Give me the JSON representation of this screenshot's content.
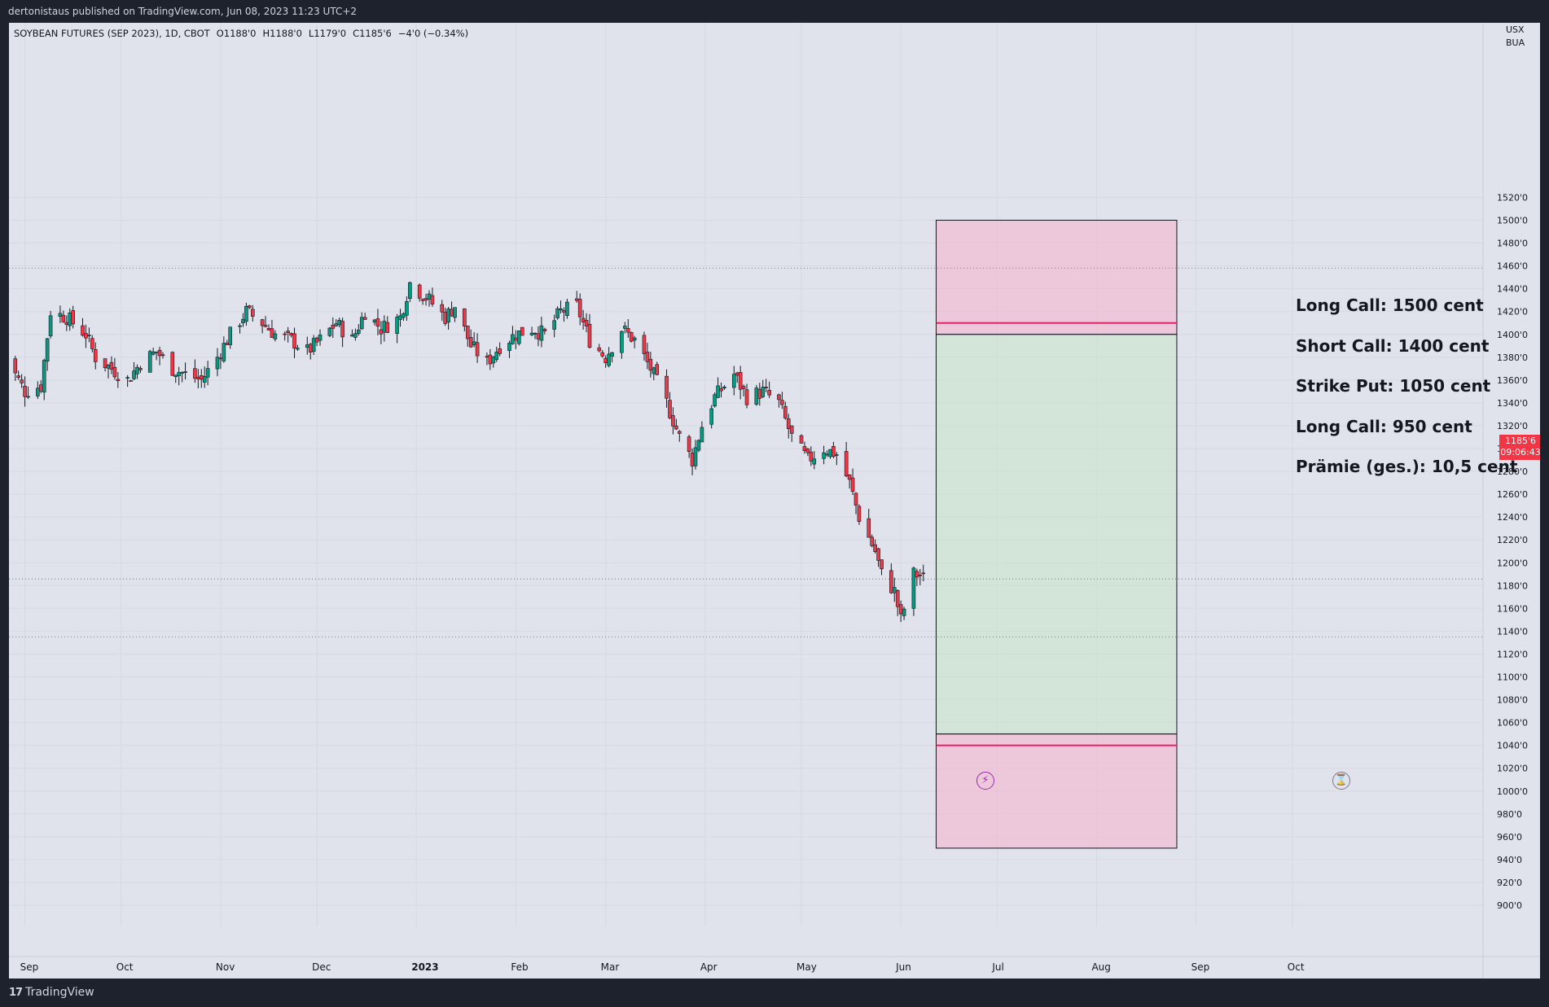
{
  "header": {
    "published": "dertonistaus published on TradingView.com, Jun 08, 2023 11:23 UTC+2"
  },
  "symbol": {
    "name": "SOYBEAN FUTURES (SEP 2023), 1D, CBOT",
    "open": "O1188'0",
    "high": "H1188'0",
    "low": "L1179'0",
    "close": "C1185'6",
    "change": "−4'0 (−0.34%)"
  },
  "price_scale": {
    "unit_top": "USX",
    "unit_bottom": "BUA",
    "current_price": "1185'6",
    "countdown": "09:06:43",
    "ticks": [
      "1520'0",
      "1500'0",
      "1480'0",
      "1460'0",
      "1440'0",
      "1420'0",
      "1400'0",
      "1380'0",
      "1360'0",
      "1340'0",
      "1320'0",
      "1300'0",
      "1280'0",
      "1260'0",
      "1240'0",
      "1220'0",
      "1200'0",
      "1180'0",
      "1160'0",
      "1140'0",
      "1120'0",
      "1100'0",
      "1080'0",
      "1060'0",
      "1040'0",
      "1020'0",
      "1000'0",
      "980'0",
      "960'0",
      "940'0",
      "920'0",
      "900'0"
    ]
  },
  "time_scale": {
    "labels": [
      "Sep",
      "Oct",
      "Nov",
      "Dec",
      "2023",
      "Feb",
      "Mar",
      "Apr",
      "May",
      "Jun",
      "Jul",
      "Aug",
      "Sep",
      "Oct"
    ]
  },
  "annotations": [
    "Long Call: 1500 cent",
    "Short Call: 1400 cent",
    "Strike Put: 1050 cent",
    "Long Call: 950 cent",
    "Prämie (ges.): 10,5 cent"
  ],
  "chart_data": {
    "type": "candlestick",
    "title": "SOYBEAN FUTURES (SEP 2023), 1D, CBOT",
    "ylim": [
      890,
      1530
    ],
    "xlim_dates": [
      "2022-08-25",
      "2023-10-31"
    ],
    "last_close": 1185.75,
    "levels": [
      {
        "value": 1458,
        "style": "dotted"
      },
      {
        "value": 1185.75,
        "style": "dotted-red"
      },
      {
        "value": 1135,
        "style": "dotted"
      }
    ],
    "zones": [
      {
        "kind": "loss-upper",
        "top": 1500,
        "bottom": 1400,
        "color": "#f7b3cc",
        "line": 1410
      },
      {
        "kind": "profit",
        "top": 1400,
        "bottom": 1050,
        "color": "#c8e6c9"
      },
      {
        "kind": "loss-lower",
        "top": 1050,
        "bottom": 950,
        "color": "#f7b3cc",
        "line": 1040
      }
    ],
    "zone_dates": [
      "2023-06-12",
      "2023-08-26"
    ],
    "price_path": [
      [
        "2022-08-25",
        1385
      ],
      [
        "2022-09-01",
        1350
      ],
      [
        "2022-09-06",
        1355
      ],
      [
        "2022-09-09",
        1420
      ],
      [
        "2022-09-14",
        1415
      ],
      [
        "2022-09-20",
        1400
      ],
      [
        "2022-09-23",
        1380
      ],
      [
        "2022-09-28",
        1370
      ],
      [
        "2022-10-03",
        1360
      ],
      [
        "2022-10-07",
        1375
      ],
      [
        "2022-10-12",
        1385
      ],
      [
        "2022-10-17",
        1370
      ],
      [
        "2022-10-21",
        1365
      ],
      [
        "2022-10-26",
        1360
      ],
      [
        "2022-10-31",
        1380
      ],
      [
        "2022-11-04",
        1400
      ],
      [
        "2022-11-09",
        1420
      ],
      [
        "2022-11-14",
        1410
      ],
      [
        "2022-11-18",
        1400
      ],
      [
        "2022-11-23",
        1395
      ],
      [
        "2022-11-28",
        1385
      ],
      [
        "2022-12-02",
        1395
      ],
      [
        "2022-12-07",
        1410
      ],
      [
        "2022-12-12",
        1395
      ],
      [
        "2022-12-16",
        1420
      ],
      [
        "2022-12-21",
        1405
      ],
      [
        "2022-12-27",
        1415
      ],
      [
        "2022-12-30",
        1445
      ],
      [
        "2023-01-05",
        1430
      ],
      [
        "2023-01-10",
        1415
      ],
      [
        "2023-01-13",
        1425
      ],
      [
        "2023-01-18",
        1390
      ],
      [
        "2023-01-23",
        1375
      ],
      [
        "2023-01-27",
        1390
      ],
      [
        "2023-02-01",
        1400
      ],
      [
        "2023-02-06",
        1405
      ],
      [
        "2023-02-10",
        1400
      ],
      [
        "2023-02-15",
        1420
      ],
      [
        "2023-02-20",
        1425
      ],
      [
        "2023-02-24",
        1395
      ],
      [
        "2023-03-01",
        1380
      ],
      [
        "2023-03-06",
        1405
      ],
      [
        "2023-03-10",
        1395
      ],
      [
        "2023-03-15",
        1370
      ],
      [
        "2023-03-20",
        1340
      ],
      [
        "2023-03-24",
        1310
      ],
      [
        "2023-03-28",
        1290
      ],
      [
        "2023-03-31",
        1320
      ],
      [
        "2023-04-04",
        1345
      ],
      [
        "2023-04-10",
        1365
      ],
      [
        "2023-04-14",
        1345
      ],
      [
        "2023-04-19",
        1350
      ],
      [
        "2023-04-24",
        1340
      ],
      [
        "2023-04-28",
        1310
      ],
      [
        "2023-05-03",
        1290
      ],
      [
        "2023-05-08",
        1300
      ],
      [
        "2023-05-12",
        1295
      ],
      [
        "2023-05-16",
        1270
      ],
      [
        "2023-05-19",
        1240
      ],
      [
        "2023-05-24",
        1210
      ],
      [
        "2023-05-26",
        1190
      ],
      [
        "2023-05-30",
        1175
      ],
      [
        "2023-06-01",
        1150
      ],
      [
        "2023-06-05",
        1190
      ],
      [
        "2023-06-07",
        1189
      ],
      [
        "2023-06-08",
        1185.75
      ]
    ]
  }
}
